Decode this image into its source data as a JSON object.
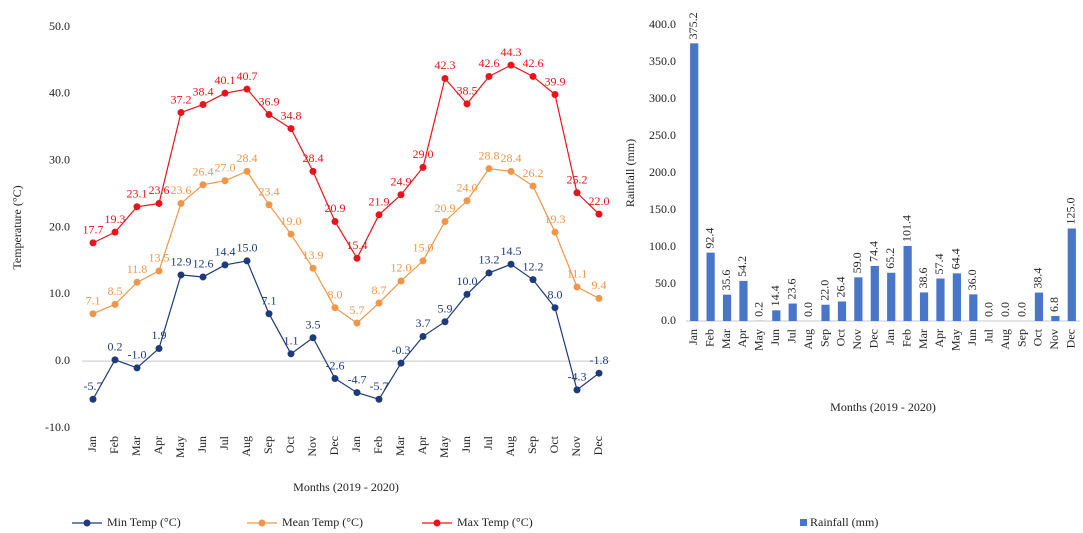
{
  "chart_data": [
    {
      "type": "line",
      "x_label": "Months (2019 - 2020)",
      "y_label": "Temperature (°C)",
      "categories": [
        "Jan",
        "Feb",
        "Mar",
        "Apr",
        "May",
        "Jun",
        "Jul",
        "Aug",
        "Sep",
        "Oct",
        "Nov",
        "Dec",
        "Jan",
        "Feb",
        "Mar",
        "Apr",
        "May",
        "Jun",
        "Jul",
        "Aug",
        "Sep",
        "Oct",
        "Nov",
        "Dec"
      ],
      "ylim": [
        -10,
        50
      ],
      "yticks": [
        {
          "value": -10,
          "label": "-10.0"
        },
        {
          "value": 0,
          "label": "0.0"
        },
        {
          "value": 10,
          "label": "10.0"
        },
        {
          "value": 20,
          "label": "20.0"
        },
        {
          "value": 30,
          "label": "30.0"
        },
        {
          "value": 40,
          "label": "40.0"
        },
        {
          "value": 50,
          "label": "50.0"
        }
      ],
      "series": [
        {
          "name": "Min Temp (°C)",
          "color": "#1f3a7a",
          "values": [
            -5.7,
            0.2,
            -1.0,
            1.9,
            12.9,
            12.6,
            14.4,
            15.0,
            7.1,
            1.1,
            3.5,
            -2.6,
            -4.7,
            -5.7,
            -0.3,
            3.7,
            5.9,
            10.0,
            13.2,
            14.5,
            12.2,
            8.0,
            -4.3,
            -1.8
          ],
          "value_labels": [
            "-5.7",
            "0.2",
            "-1.0",
            "1.9",
            "12.9",
            "12.6",
            "14.4",
            "15.0",
            "7.1",
            "1.1",
            "3.5",
            "-2.6",
            "-4.7",
            "-5.7",
            "-0.3",
            "3.7",
            "5.9",
            "10.0",
            "13.2",
            "14.5",
            "12.2",
            "8.0",
            "-4.3",
            "-1.8"
          ]
        },
        {
          "name": "Mean Temp (°C)",
          "color": "#f0964a",
          "values": [
            7.1,
            8.5,
            11.8,
            13.5,
            23.6,
            26.4,
            27.0,
            28.4,
            23.4,
            19.0,
            13.9,
            8.0,
            5.7,
            8.7,
            12.0,
            15.0,
            20.9,
            24.0,
            28.8,
            28.4,
            26.2,
            19.3,
            11.1,
            9.4
          ],
          "value_labels": [
            "7.1",
            "8.5",
            "11.8",
            "13.5",
            "23.6",
            "26.4",
            "27.0",
            "28.4",
            "23.4",
            "19.0",
            "13.9",
            "8.0",
            "5.7",
            "8.7",
            "12.0",
            "15.0",
            "20.9",
            "24.0",
            "28.8",
            "28.4",
            "26.2",
            "19.3",
            "11.1",
            "9.4"
          ]
        },
        {
          "name": "Max Temp (°C)",
          "color": "#e8141b",
          "values": [
            17.7,
            19.3,
            23.1,
            23.6,
            37.2,
            38.4,
            40.1,
            40.7,
            36.9,
            34.8,
            28.4,
            20.9,
            15.4,
            21.9,
            24.9,
            29.0,
            42.3,
            38.5,
            42.6,
            44.3,
            42.6,
            39.9,
            25.2,
            22.0
          ],
          "value_labels": [
            "17.7",
            "19.3",
            "23.1",
            "23.6",
            "37.2",
            "38.4",
            "40.1",
            "40.7",
            "36.9",
            "34.8",
            "28.4",
            "20.9",
            "15.4",
            "21.9",
            "24.9",
            "29.0",
            "42.3",
            "38.5",
            "42.6",
            "44.3",
            "42.6",
            "39.9",
            "25.2",
            "22.0"
          ]
        }
      ]
    },
    {
      "type": "bar",
      "x_label": "Months (2019 - 2020)",
      "y_label": "Rainfall (mm)",
      "categories": [
        "Jan",
        "Feb",
        "Mar",
        "Apr",
        "May",
        "Jun",
        "Jul",
        "Aug",
        "Sep",
        "Oct",
        "Nov",
        "Dec",
        "Jan",
        "Feb",
        "Mar",
        "Apr",
        "May",
        "Jun",
        "Jul",
        "Aug",
        "Sep",
        "Oct",
        "Nov",
        "Dec"
      ],
      "ylim": [
        0,
        400
      ],
      "yticks": [
        {
          "value": 0,
          "label": "0.0"
        },
        {
          "value": 50,
          "label": "50.0"
        },
        {
          "value": 100,
          "label": "100.0"
        },
        {
          "value": 150,
          "label": "150.0"
        },
        {
          "value": 200,
          "label": "200.0"
        },
        {
          "value": 250,
          "label": "250.0"
        },
        {
          "value": 300,
          "label": "300.0"
        },
        {
          "value": 350,
          "label": "350.0"
        },
        {
          "value": 400,
          "label": "400.0"
        }
      ],
      "series": [
        {
          "name": "Rainfall (mm)",
          "color": "#4a76c9",
          "values": [
            375.2,
            92.4,
            35.6,
            54.2,
            0.2,
            14.4,
            23.6,
            0.0,
            22.0,
            26.4,
            59.0,
            74.4,
            65.2,
            101.4,
            38.6,
            57.4,
            64.4,
            36.0,
            0.0,
            0.0,
            0.0,
            38.4,
            6.8,
            125.0
          ],
          "value_labels": [
            "375.2",
            "92.4",
            "35.6",
            "54.2",
            "0.2",
            "14.4",
            "23.6",
            "0.0",
            "22.0",
            "26.4",
            "59.0",
            "74.4",
            "65.2",
            "101.4",
            "38.6",
            "57.4",
            "64.4",
            "36.0",
            "0.0",
            "0.0",
            "0.0",
            "38.4",
            "6.8",
            "125.0"
          ]
        }
      ]
    }
  ]
}
